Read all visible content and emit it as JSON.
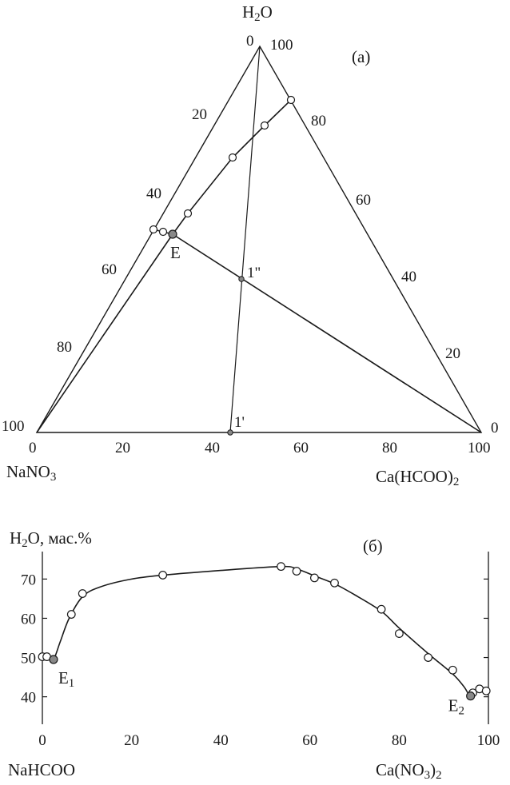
{
  "ternary": {
    "panel_label": "(а)",
    "top_vertex": {
      "text": "H",
      "sub": "2",
      "tail": "O"
    },
    "left_vertex": {
      "text": "NaNO",
      "sub": "3",
      "tail": ""
    },
    "right_vertex": {
      "text": "Ca(HCOO)",
      "sub": "2",
      "tail": ""
    },
    "apex_left_tick": "0",
    "apex_right_tick": "100",
    "left_corner_tick": "100",
    "right_corner_tick": "0",
    "left_side_ticks": [
      "20",
      "40",
      "60",
      "80"
    ],
    "right_side_ticks": [
      "80",
      "60",
      "40",
      "20"
    ],
    "bottom_ticks": [
      "0",
      "20",
      "40",
      "60",
      "80",
      "100"
    ],
    "point_E": "E",
    "point_1pp": "1\"",
    "point_1p": "1'"
  },
  "chart_data": {
    "type": "scatter",
    "panel_label": "(б)",
    "ylabel_main": "H",
    "ylabel_sub": "2",
    "ylabel_tail": "O, мас.%",
    "xlabel_left": "NaHCOO",
    "xlabel_right_main": "Ca(NO",
    "xlabel_right_sub": "3",
    "xlabel_right_tail": ")",
    "xlabel_right_sub2": "2",
    "xlim": [
      0,
      100
    ],
    "ylim": [
      33,
      77
    ],
    "x_ticks": [
      0,
      20,
      40,
      60,
      80,
      100
    ],
    "y_ticks": [
      40,
      50,
      60,
      70
    ],
    "points": [
      {
        "x": 0,
        "y": 50.2
      },
      {
        "x": 1,
        "y": 50.2
      },
      {
        "x": 6.5,
        "y": 61
      },
      {
        "x": 9,
        "y": 66.3
      },
      {
        "x": 27,
        "y": 71
      },
      {
        "x": 53.5,
        "y": 73.2
      },
      {
        "x": 57,
        "y": 72
      },
      {
        "x": 61,
        "y": 70.3
      },
      {
        "x": 65.5,
        "y": 69
      },
      {
        "x": 76,
        "y": 62.3
      },
      {
        "x": 80,
        "y": 56.1
      },
      {
        "x": 86.5,
        "y": 50
      },
      {
        "x": 92,
        "y": 46.8
      },
      {
        "x": 96.5,
        "y": 41
      },
      {
        "x": 98,
        "y": 42
      },
      {
        "x": 99.5,
        "y": 41.5
      }
    ],
    "eutonic": [
      {
        "name": "E",
        "sub": "1",
        "x": 2.5,
        "y": 49.5
      },
      {
        "name": "E",
        "sub": "2",
        "x": 96,
        "y": 40.2
      }
    ],
    "curve": [
      [
        0,
        50.2
      ],
      [
        1.5,
        50.2
      ],
      [
        2.5,
        49.5
      ],
      [
        4,
        54
      ],
      [
        6,
        60
      ],
      [
        9,
        65.5
      ],
      [
        13,
        68
      ],
      [
        20,
        70
      ],
      [
        27,
        71
      ],
      [
        40,
        72.2
      ],
      [
        53.5,
        73.2
      ],
      [
        57,
        72.6
      ],
      [
        61,
        70.8
      ],
      [
        65.5,
        68.8
      ],
      [
        70,
        66
      ],
      [
        76,
        61.8
      ],
      [
        80,
        57.5
      ],
      [
        86.5,
        51
      ],
      [
        92,
        45.8
      ],
      [
        94.5,
        42.6
      ],
      [
        96,
        40.2
      ],
      [
        97.5,
        41.5
      ],
      [
        99.5,
        42
      ]
    ]
  }
}
